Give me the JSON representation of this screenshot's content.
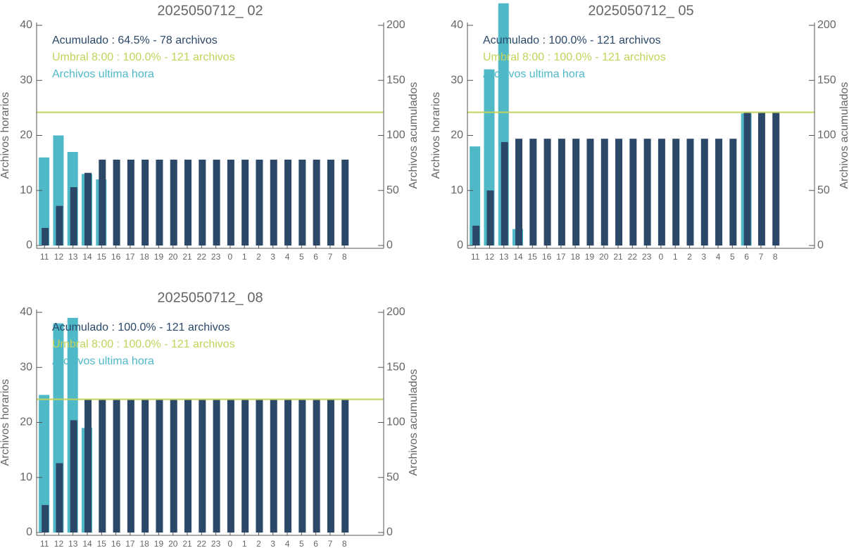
{
  "chart_data": [
    {
      "type": "bar",
      "title": "2025050712_ 02",
      "categories": [
        "11",
        "12",
        "13",
        "14",
        "15",
        "16",
        "17",
        "18",
        "19",
        "20",
        "21",
        "22",
        "23",
        "0",
        "1",
        "2",
        "3",
        "4",
        "5",
        "6",
        "7",
        "8"
      ],
      "series": [
        {
          "name": "Acumulado : 64.5% - 78 archivos",
          "color": "#2b4868",
          "axis": "y2",
          "values": [
            16,
            36,
            53,
            66,
            78,
            78,
            78,
            78,
            78,
            78,
            78,
            78,
            78,
            78,
            78,
            78,
            78,
            78,
            78,
            78,
            78,
            78
          ]
        },
        {
          "name": "Archivos ultima hora",
          "color": "#4fb9c8",
          "values": [
            16,
            20,
            17,
            13,
            12,
            null,
            null,
            null,
            null,
            null,
            null,
            null,
            null,
            null,
            null,
            null,
            null,
            null,
            null,
            null,
            null,
            null
          ]
        }
      ],
      "threshold": {
        "name": "Umbral 8:00 : 100.0% - 121 archivos",
        "value": 121,
        "color": "#c5d25a"
      },
      "ylabel": "Archivos horarios",
      "y2label": "Archivos acumulados",
      "ylim": [
        0,
        40
      ],
      "yticks": [
        0,
        10,
        20,
        30,
        40
      ],
      "y2lim": [
        0,
        200
      ],
      "y2ticks": [
        0,
        50,
        100,
        150,
        200
      ]
    },
    {
      "type": "bar",
      "title": "2025050712_ 05",
      "categories": [
        "11",
        "12",
        "13",
        "14",
        "15",
        "16",
        "17",
        "18",
        "19",
        "20",
        "21",
        "22",
        "23",
        "0",
        "1",
        "2",
        "3",
        "4",
        "5",
        "6",
        "7",
        "8"
      ],
      "series": [
        {
          "name": "Acumulado : 100.0% - 121 archivos",
          "color": "#2b4868",
          "axis": "y2",
          "values": [
            18,
            50,
            94,
            97,
            97,
            97,
            97,
            97,
            97,
            97,
            97,
            97,
            97,
            97,
            97,
            97,
            97,
            97,
            97,
            121,
            121,
            121
          ]
        },
        {
          "name": "Archivos ultima hora",
          "color": "#4fb9c8",
          "values": [
            18,
            32,
            44,
            3,
            null,
            null,
            null,
            null,
            null,
            null,
            null,
            null,
            null,
            null,
            null,
            null,
            null,
            null,
            null,
            24,
            null,
            null
          ]
        }
      ],
      "threshold": {
        "name": "Umbral 8:00 : 100.0% - 121 archivos",
        "value": 121,
        "color": "#c5d25a"
      },
      "ylabel": "Archivos horarios",
      "y2label": "Archivos acumulados",
      "ylim": [
        0,
        40
      ],
      "yticks": [
        0,
        10,
        20,
        30,
        40
      ],
      "y2lim": [
        0,
        200
      ],
      "y2ticks": [
        0,
        50,
        100,
        150,
        200
      ]
    },
    {
      "type": "bar",
      "title": "2025050712_ 08",
      "categories": [
        "11",
        "12",
        "13",
        "14",
        "15",
        "16",
        "17",
        "18",
        "19",
        "20",
        "21",
        "22",
        "23",
        "0",
        "1",
        "2",
        "3",
        "4",
        "5",
        "6",
        "7",
        "8"
      ],
      "series": [
        {
          "name": "Acumulado : 100.0% - 121 archivos",
          "color": "#2b4868",
          "axis": "y2",
          "values": [
            25,
            63,
            102,
            121,
            121,
            121,
            121,
            121,
            121,
            121,
            121,
            121,
            121,
            121,
            121,
            121,
            121,
            121,
            121,
            121,
            121,
            121
          ]
        },
        {
          "name": "Archivos ultima hora",
          "color": "#4fb9c8",
          "values": [
            25,
            38,
            39,
            19,
            null,
            null,
            null,
            null,
            null,
            null,
            null,
            null,
            null,
            null,
            null,
            null,
            null,
            null,
            null,
            null,
            null,
            null
          ]
        }
      ],
      "threshold": {
        "name": "Umbral 8:00 : 100.0% - 121 archivos",
        "value": 121,
        "color": "#c5d25a"
      },
      "ylabel": "Archivos horarios",
      "y2label": "Archivos acumulados",
      "ylim": [
        0,
        40
      ],
      "yticks": [
        0,
        10,
        20,
        30,
        40
      ],
      "y2lim": [
        0,
        200
      ],
      "y2ticks": [
        0,
        50,
        100,
        150,
        200
      ]
    }
  ]
}
